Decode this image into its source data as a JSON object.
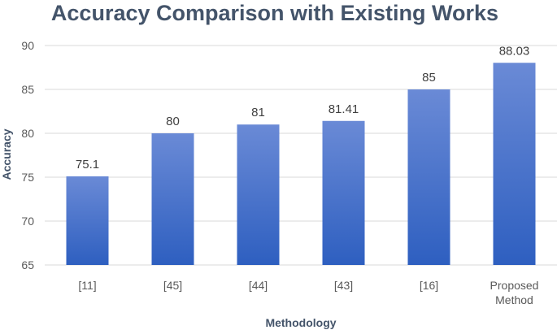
{
  "chart_data": {
    "type": "bar",
    "title": "Accuracy Comparison with Existing Works",
    "xlabel": "Methodology",
    "ylabel": "Accuracy",
    "categories": [
      "[11]",
      "[45]",
      "[44]",
      "[43]",
      "[16]",
      "Proposed Method"
    ],
    "values": [
      75.1,
      80,
      81,
      81.41,
      85,
      88.03
    ],
    "data_labels": [
      "75.1",
      "80",
      "81",
      "81.41",
      "85",
      "88.03"
    ],
    "ylim": [
      65,
      90
    ],
    "yticks": [
      65,
      70,
      75,
      80,
      85,
      90
    ],
    "grid": true,
    "legend": "none",
    "colors": {
      "bar_top": "#6a8ad6",
      "bar_bottom": "#2e5fc0",
      "text": "#44546a"
    }
  }
}
